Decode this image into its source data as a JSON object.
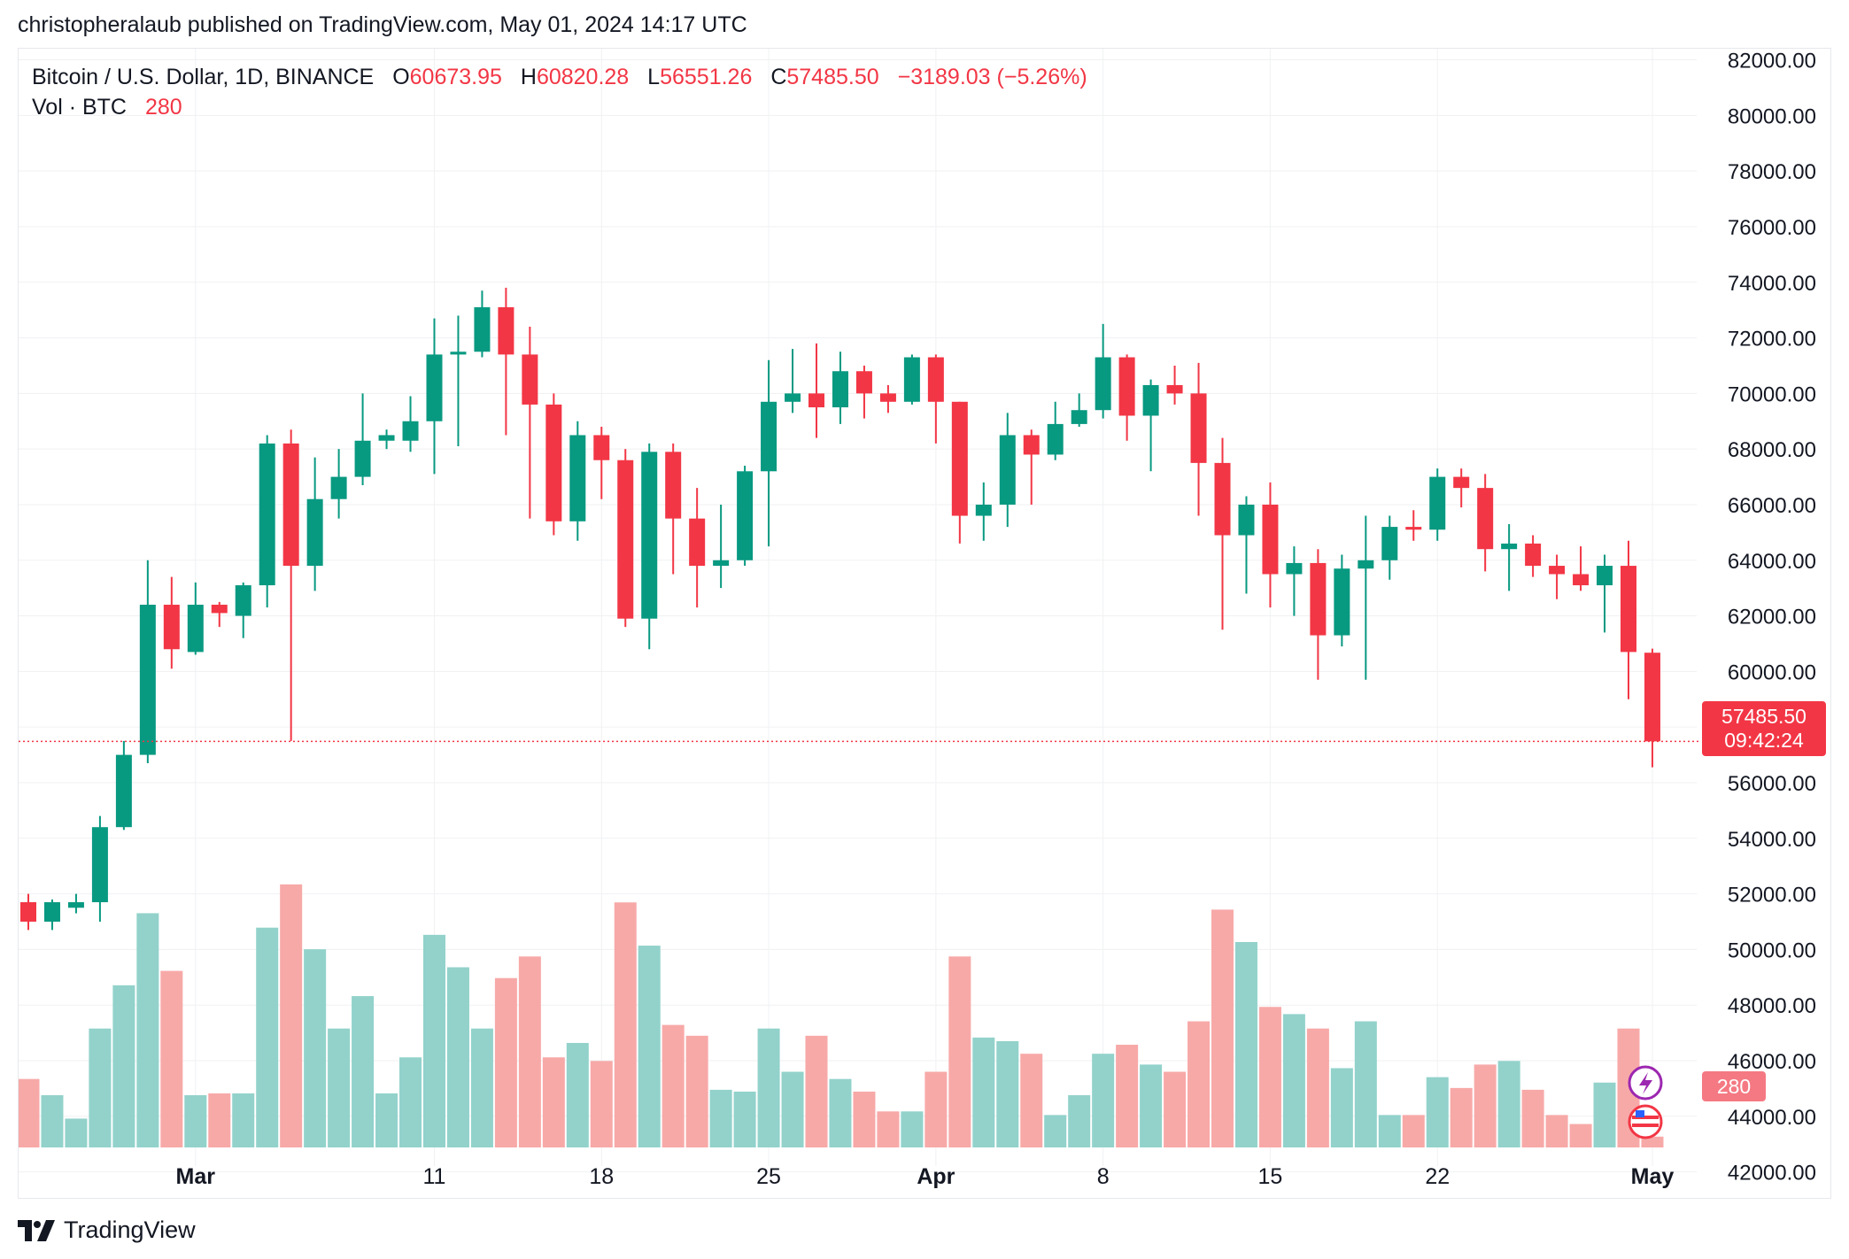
{
  "header": {
    "text": "christopheralaub published on TradingView.com, May 01, 2024 14:17 UTC"
  },
  "legend": {
    "symbol": "Bitcoin / U.S. Dollar, 1D, BINANCE",
    "o_label": "O",
    "o_value": "60673.95",
    "h_label": "H",
    "h_value": "60820.28",
    "l_label": "L",
    "l_value": "56551.26",
    "c_label": "C",
    "c_value": "57485.50",
    "change": "−3189.03 (−5.26%)",
    "vol_label": "Vol · BTC",
    "vol_value": "280"
  },
  "badges": {
    "last_price": "57485.50",
    "countdown": "09:42:24",
    "volume": "280"
  },
  "footer": {
    "brand": "TradingView",
    "logo_icon": "tradingview-logo-icon"
  },
  "colors": {
    "up": "#089981",
    "down": "#f23645",
    "vol_up": "#92d2cb",
    "vol_down": "#f7a9a8",
    "grid": "#f0f1f3",
    "axis_text": "#131722"
  },
  "chart_data": {
    "type": "candlestick",
    "symbol": "Bitcoin / U.S. Dollar",
    "interval": "1D",
    "exchange": "BINANCE",
    "y_axis": {
      "side": "right",
      "min": 41000,
      "max": 82400,
      "ticks": [
        82000,
        80000,
        78000,
        76000,
        74000,
        72000,
        70000,
        68000,
        66000,
        64000,
        62000,
        60000,
        58000,
        56000,
        54000,
        52000,
        50000,
        48000,
        46000,
        44000,
        42000
      ]
    },
    "x_labels": [
      {
        "label": "Mar",
        "index": 7
      },
      {
        "label": "11",
        "index": 17
      },
      {
        "label": "18",
        "index": 24
      },
      {
        "label": "25",
        "index": 31
      },
      {
        "label": "Apr",
        "index": 38
      },
      {
        "label": "8",
        "index": 45
      },
      {
        "label": "15",
        "index": 52
      },
      {
        "label": "22",
        "index": 59
      },
      {
        "label": "May",
        "index": 68
      }
    ],
    "last_price": 57485.5,
    "grid": true,
    "candles": [
      {
        "o": 51700,
        "h": 52000,
        "l": 50700,
        "c": 51000,
        "v": 1.9
      },
      {
        "o": 51000,
        "h": 51800,
        "l": 50700,
        "c": 51700,
        "v": 1.45
      },
      {
        "o": 51500,
        "h": 52000,
        "l": 51300,
        "c": 51700,
        "v": 0.8
      },
      {
        "o": 51700,
        "h": 54800,
        "l": 51000,
        "c": 54400,
        "v": 3.3
      },
      {
        "o": 54400,
        "h": 57500,
        "l": 54300,
        "c": 57000,
        "v": 4.5
      },
      {
        "o": 57000,
        "h": 64000,
        "l": 56700,
        "c": 62400,
        "v": 6.5
      },
      {
        "o": 62400,
        "h": 63400,
        "l": 60100,
        "c": 60800,
        "v": 4.9
      },
      {
        "o": 60700,
        "h": 63200,
        "l": 60600,
        "c": 62400,
        "v": 1.45
      },
      {
        "o": 62400,
        "h": 62500,
        "l": 61600,
        "c": 62100,
        "v": 1.5
      },
      {
        "o": 62000,
        "h": 63200,
        "l": 61200,
        "c": 63100,
        "v": 1.5
      },
      {
        "o": 63100,
        "h": 68500,
        "l": 62300,
        "c": 68200,
        "v": 6.1
      },
      {
        "o": 68200,
        "h": 68700,
        "l": 57500,
        "c": 63800,
        "v": 7.3
      },
      {
        "o": 63800,
        "h": 67700,
        "l": 62900,
        "c": 66200,
        "v": 5.5
      },
      {
        "o": 66200,
        "h": 68000,
        "l": 65500,
        "c": 67000,
        "v": 3.3
      },
      {
        "o": 67000,
        "h": 70000,
        "l": 66700,
        "c": 68300,
        "v": 4.2
      },
      {
        "o": 68300,
        "h": 68700,
        "l": 68000,
        "c": 68500,
        "v": 1.5
      },
      {
        "o": 68300,
        "h": 69900,
        "l": 67900,
        "c": 69000,
        "v": 2.5
      },
      {
        "o": 69000,
        "h": 72700,
        "l": 67100,
        "c": 71400,
        "v": 5.9
      },
      {
        "o": 71400,
        "h": 72800,
        "l": 68100,
        "c": 71500,
        "v": 5
      },
      {
        "o": 71500,
        "h": 73700,
        "l": 71300,
        "c": 73100,
        "v": 3.3
      },
      {
        "o": 73100,
        "h": 73800,
        "l": 68500,
        "c": 71400,
        "v": 4.7
      },
      {
        "o": 71400,
        "h": 72400,
        "l": 65500,
        "c": 69600,
        "v": 5.3
      },
      {
        "o": 69600,
        "h": 70000,
        "l": 64900,
        "c": 65400,
        "v": 2.5
      },
      {
        "o": 65400,
        "h": 69000,
        "l": 64700,
        "c": 68500,
        "v": 2.9
      },
      {
        "o": 68500,
        "h": 68800,
        "l": 66200,
        "c": 67600,
        "v": 2.4
      },
      {
        "o": 67600,
        "h": 68000,
        "l": 61600,
        "c": 61900,
        "v": 6.8
      },
      {
        "o": 61900,
        "h": 68200,
        "l": 60800,
        "c": 67900,
        "v": 5.6
      },
      {
        "o": 67900,
        "h": 68200,
        "l": 63500,
        "c": 65500,
        "v": 3.4
      },
      {
        "o": 65500,
        "h": 66600,
        "l": 62300,
        "c": 63800,
        "v": 3.1
      },
      {
        "o": 63800,
        "h": 66000,
        "l": 63000,
        "c": 64000,
        "v": 1.6
      },
      {
        "o": 64000,
        "h": 67400,
        "l": 63800,
        "c": 67200,
        "v": 1.55
      },
      {
        "o": 67200,
        "h": 71200,
        "l": 64500,
        "c": 69700,
        "v": 3.3
      },
      {
        "o": 69700,
        "h": 71600,
        "l": 69300,
        "c": 70000,
        "v": 2.1
      },
      {
        "o": 70000,
        "h": 71800,
        "l": 68400,
        "c": 69500,
        "v": 3.1
      },
      {
        "o": 69500,
        "h": 71500,
        "l": 68900,
        "c": 70800,
        "v": 1.9
      },
      {
        "o": 70800,
        "h": 71000,
        "l": 69100,
        "c": 70000,
        "v": 1.55
      },
      {
        "o": 70000,
        "h": 70300,
        "l": 69300,
        "c": 69700,
        "v": 1
      },
      {
        "o": 69700,
        "h": 71400,
        "l": 69600,
        "c": 71300,
        "v": 1
      },
      {
        "o": 71300,
        "h": 71400,
        "l": 68200,
        "c": 69700,
        "v": 2.1
      },
      {
        "o": 69700,
        "h": 69700,
        "l": 64600,
        "c": 65600,
        "v": 5.3
      },
      {
        "o": 65600,
        "h": 66800,
        "l": 64700,
        "c": 66000,
        "v": 3.05
      },
      {
        "o": 66000,
        "h": 69300,
        "l": 65200,
        "c": 68500,
        "v": 2.95
      },
      {
        "o": 68500,
        "h": 68700,
        "l": 66000,
        "c": 67800,
        "v": 2.6
      },
      {
        "o": 67800,
        "h": 69700,
        "l": 67600,
        "c": 68900,
        "v": 0.9
      },
      {
        "o": 68900,
        "h": 70000,
        "l": 68800,
        "c": 69400,
        "v": 1.45
      },
      {
        "o": 69400,
        "h": 72500,
        "l": 69100,
        "c": 71300,
        "v": 2.6
      },
      {
        "o": 71300,
        "h": 71400,
        "l": 68300,
        "c": 69200,
        "v": 2.85
      },
      {
        "o": 69200,
        "h": 70500,
        "l": 67200,
        "c": 70300,
        "v": 2.3
      },
      {
        "o": 70300,
        "h": 71000,
        "l": 69600,
        "c": 70000,
        "v": 2.1
      },
      {
        "o": 70000,
        "h": 71100,
        "l": 65600,
        "c": 67500,
        "v": 3.5
      },
      {
        "o": 67500,
        "h": 68400,
        "l": 61500,
        "c": 64900,
        "v": 6.6
      },
      {
        "o": 64900,
        "h": 66300,
        "l": 62800,
        "c": 66000,
        "v": 5.7
      },
      {
        "o": 66000,
        "h": 66800,
        "l": 62300,
        "c": 63500,
        "v": 3.9
      },
      {
        "o": 63500,
        "h": 64500,
        "l": 62000,
        "c": 63900,
        "v": 3.7
      },
      {
        "o": 63900,
        "h": 64400,
        "l": 59700,
        "c": 61300,
        "v": 3.3
      },
      {
        "o": 61300,
        "h": 64200,
        "l": 60900,
        "c": 63700,
        "v": 2.2
      },
      {
        "o": 63700,
        "h": 65600,
        "l": 59700,
        "c": 64000,
        "v": 3.5
      },
      {
        "o": 64000,
        "h": 65600,
        "l": 63300,
        "c": 65200,
        "v": 0.9
      },
      {
        "o": 65200,
        "h": 65800,
        "l": 64700,
        "c": 65100,
        "v": 0.9
      },
      {
        "o": 65100,
        "h": 67300,
        "l": 64700,
        "c": 67000,
        "v": 1.95
      },
      {
        "o": 67000,
        "h": 67300,
        "l": 65900,
        "c": 66600,
        "v": 1.65
      },
      {
        "o": 66600,
        "h": 67100,
        "l": 63600,
        "c": 64400,
        "v": 2.3
      },
      {
        "o": 64400,
        "h": 65300,
        "l": 62900,
        "c": 64600,
        "v": 2.4
      },
      {
        "o": 64600,
        "h": 64900,
        "l": 63400,
        "c": 63800,
        "v": 1.6
      },
      {
        "o": 63800,
        "h": 64200,
        "l": 62600,
        "c": 63500,
        "v": 0.9
      },
      {
        "o": 63500,
        "h": 64500,
        "l": 62900,
        "c": 63100,
        "v": 0.65
      },
      {
        "o": 63100,
        "h": 64200,
        "l": 61400,
        "c": 63800,
        "v": 1.8
      },
      {
        "o": 63800,
        "h": 64700,
        "l": 59000,
        "c": 60700,
        "v": 3.3
      },
      {
        "o": 60674,
        "h": 60820,
        "l": 56551,
        "c": 57486,
        "v": 0.3
      }
    ]
  }
}
